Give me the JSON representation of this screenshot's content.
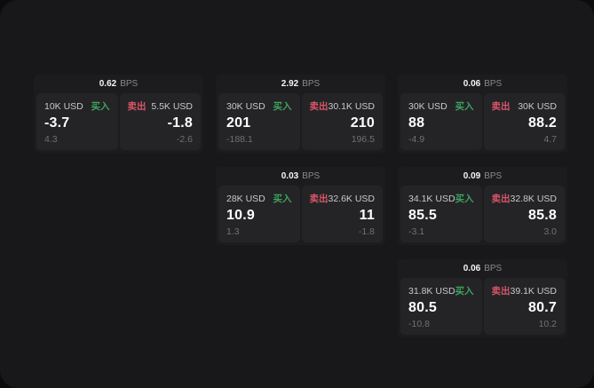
{
  "theme": {
    "outer_bg": "#0c0c0d",
    "page_bg": "#18181a",
    "card_bg": "#1c1c1e",
    "panel_bg": "#242427",
    "buy_color": "#3da35c",
    "sell_color": "#d95568"
  },
  "labels": {
    "bps": "BPS",
    "buy": "买入",
    "sell": "卖出"
  },
  "cards": [
    {
      "col": 1,
      "row": 1,
      "bps": "0.62",
      "buy": {
        "amount": "10K USD",
        "price": "-3.7",
        "delta": "4.3"
      },
      "sell": {
        "amount": "5.5K USD",
        "price": "-1.8",
        "delta": "-2.6"
      }
    },
    {
      "col": 2,
      "row": 1,
      "bps": "2.92",
      "buy": {
        "amount": "30K USD",
        "price": "201",
        "delta": "-188.1"
      },
      "sell": {
        "amount": "30.1K USD",
        "price": "210",
        "delta": "196.5"
      }
    },
    {
      "col": 3,
      "row": 1,
      "bps": "0.06",
      "buy": {
        "amount": "30K USD",
        "price": "88",
        "delta": "-4.9"
      },
      "sell": {
        "amount": "30K USD",
        "price": "88.2",
        "delta": "4.7"
      }
    },
    {
      "col": 2,
      "row": 2,
      "bps": "0.03",
      "buy": {
        "amount": "28K USD",
        "price": "10.9",
        "delta": "1.3"
      },
      "sell": {
        "amount": "32.6K USD",
        "price": "11",
        "delta": "-1.8"
      }
    },
    {
      "col": 3,
      "row": 2,
      "bps": "0.09",
      "buy": {
        "amount": "34.1K USD",
        "price": "85.5",
        "delta": "-3.1"
      },
      "sell": {
        "amount": "32.8K USD",
        "price": "85.8",
        "delta": "3.0"
      }
    },
    {
      "col": 3,
      "row": 3,
      "bps": "0.06",
      "buy": {
        "amount": "31.8K USD",
        "price": "80.5",
        "delta": "-10.8"
      },
      "sell": {
        "amount": "39.1K USD",
        "price": "80.7",
        "delta": "10.2"
      }
    }
  ]
}
